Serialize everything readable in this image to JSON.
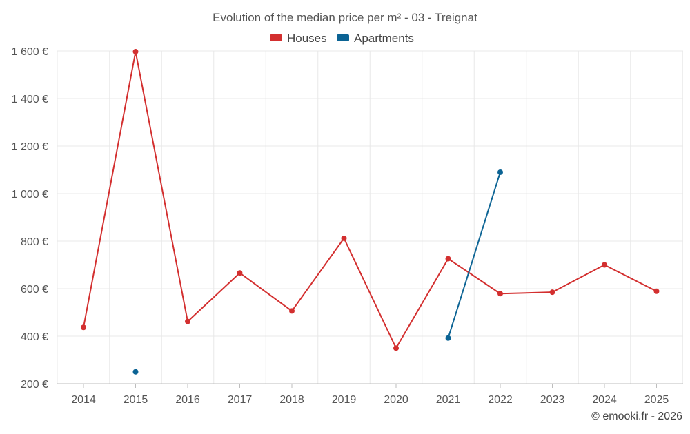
{
  "chart_data": {
    "type": "line",
    "title": "Evolution of the median price per m² - 03 - Treignat",
    "xlabel": "",
    "ylabel": "",
    "categories": [
      "2014",
      "2015",
      "2016",
      "2017",
      "2018",
      "2019",
      "2020",
      "2021",
      "2022",
      "2023",
      "2024",
      "2025"
    ],
    "ylim": [
      200,
      1600
    ],
    "yticks": [
      200,
      400,
      600,
      800,
      1000,
      1200,
      1400,
      1600
    ],
    "ytick_labels": [
      "200 €",
      "400 €",
      "600 €",
      "800 €",
      "1 000 €",
      "1 200 €",
      "1 400 €",
      "1 600 €"
    ],
    "grid": true,
    "legend_position": "top-center",
    "series": [
      {
        "name": "Houses",
        "color": "#d32f2f",
        "values": [
          437,
          1597,
          462,
          666,
          506,
          812,
          350,
          726,
          579,
          585,
          700,
          589
        ]
      },
      {
        "name": "Apartments",
        "color": "#0b6394",
        "values": [
          null,
          250,
          null,
          null,
          null,
          null,
          null,
          392,
          1090,
          null,
          null,
          null
        ]
      }
    ]
  },
  "credit": "© emooki.fr - 2026"
}
